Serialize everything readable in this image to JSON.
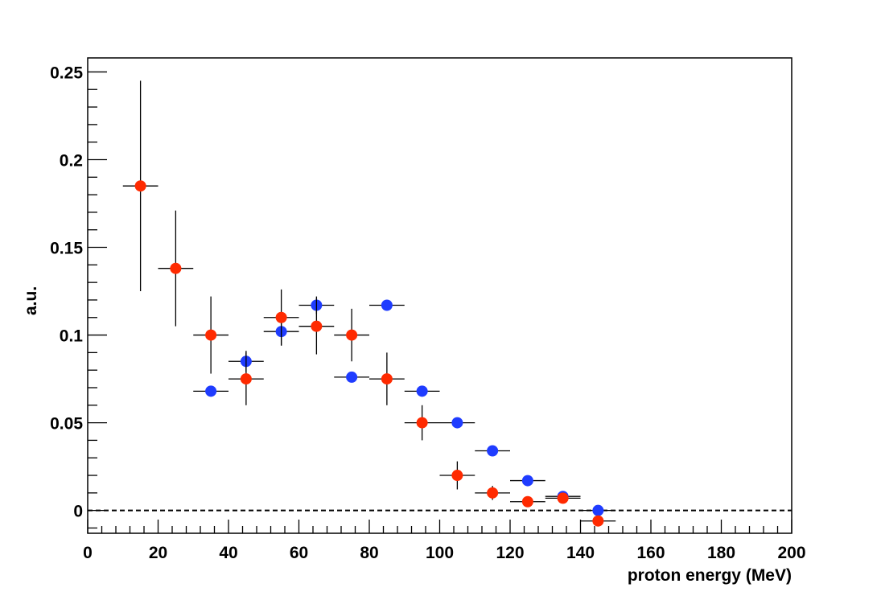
{
  "chart_data": {
    "type": "scatter",
    "title": "",
    "xlabel": "proton energy (MeV)",
    "ylabel": "a.u.",
    "xlim": [
      0,
      200
    ],
    "ylim": [
      -0.013,
      0.258
    ],
    "x_ticks": [
      0,
      20,
      40,
      60,
      80,
      100,
      120,
      140,
      160,
      180,
      200
    ],
    "x_tick_labels": [
      "0",
      "20",
      "40",
      "60",
      "80",
      "100",
      "120",
      "140",
      "160",
      "180",
      "200"
    ],
    "y_ticks": [
      0,
      0.05,
      0.1,
      0.15,
      0.2,
      0.25
    ],
    "y_tick_labels": [
      "0",
      "0.05",
      "0.1",
      "0.15",
      "0.2",
      "0.25"
    ],
    "x_halfwidth": 5,
    "zero_line": true,
    "series": [
      {
        "name": "blue",
        "color": "#1f3cff",
        "points": [
          {
            "x": 35,
            "y": 0.068,
            "yerr": 0
          },
          {
            "x": 45,
            "y": 0.085,
            "yerr": 0.006
          },
          {
            "x": 55,
            "y": 0.102,
            "yerr": 0.008
          },
          {
            "x": 65,
            "y": 0.117,
            "yerr": 0.005
          },
          {
            "x": 75,
            "y": 0.076,
            "yerr": 0
          },
          {
            "x": 85,
            "y": 0.117,
            "yerr": 0
          },
          {
            "x": 95,
            "y": 0.068,
            "yerr": 0
          },
          {
            "x": 105,
            "y": 0.05,
            "yerr": 0
          },
          {
            "x": 115,
            "y": 0.034,
            "yerr": 0
          },
          {
            "x": 125,
            "y": 0.017,
            "yerr": 0
          },
          {
            "x": 135,
            "y": 0.008,
            "yerr": 0
          },
          {
            "x": 145,
            "y": 0.0,
            "yerr": 0
          }
        ]
      },
      {
        "name": "red",
        "color": "#ff2a00",
        "points": [
          {
            "x": 15,
            "y": 0.185,
            "yerr": 0.06
          },
          {
            "x": 25,
            "y": 0.138,
            "yerr": 0.033
          },
          {
            "x": 35,
            "y": 0.1,
            "yerr": 0.022
          },
          {
            "x": 45,
            "y": 0.075,
            "yerr": 0.015
          },
          {
            "x": 55,
            "y": 0.11,
            "yerr": 0.016
          },
          {
            "x": 65,
            "y": 0.105,
            "yerr": 0.016
          },
          {
            "x": 75,
            "y": 0.1,
            "yerr": 0.015
          },
          {
            "x": 85,
            "y": 0.075,
            "yerr": 0.015
          },
          {
            "x": 95,
            "y": 0.05,
            "yerr": 0.01
          },
          {
            "x": 105,
            "y": 0.02,
            "yerr": 0.008
          },
          {
            "x": 115,
            "y": 0.01,
            "yerr": 0.004
          },
          {
            "x": 125,
            "y": 0.005,
            "yerr": 0.002
          },
          {
            "x": 135,
            "y": 0.007,
            "yerr": 0.002
          },
          {
            "x": 145,
            "y": -0.006,
            "yerr": 0.001
          }
        ]
      }
    ]
  }
}
